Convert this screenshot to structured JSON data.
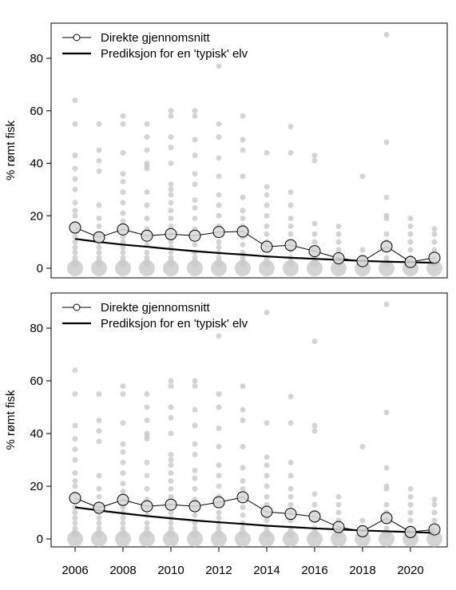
{
  "chart_data": [
    {
      "type": "scatter",
      "ylabel": "% rømt fisk",
      "xlabel": "",
      "xlim": [
        2006,
        2021
      ],
      "ylim": [
        0,
        90
      ],
      "yticks": [
        0,
        20,
        40,
        60,
        80
      ],
      "xticks_shown": false,
      "grid": false,
      "legend": {
        "position": "top-left",
        "entries": [
          "Direkte gjennomsnitt",
          "Prediksjon for en 'typisk' elv"
        ]
      },
      "series": [
        {
          "name": "Direkte gjennomsnitt",
          "style": "line+open-circles",
          "x": [
            2006,
            2007,
            2008,
            2009,
            2010,
            2011,
            2012,
            2013,
            2014,
            2015,
            2016,
            2017,
            2018,
            2019,
            2020,
            2021
          ],
          "values": [
            15.5,
            11.8,
            14.8,
            12.4,
            13.0,
            12.4,
            13.8,
            14.0,
            8.2,
            8.8,
            6.5,
            3.8,
            2.7,
            8.3,
            2.4,
            4.0
          ]
        },
        {
          "name": "Prediksjon for en 'typisk' elv",
          "style": "thick-line",
          "x": [
            2006,
            2007,
            2008,
            2009,
            2010,
            2011,
            2012,
            2013,
            2014,
            2015,
            2016,
            2017,
            2018,
            2019,
            2020,
            2021
          ],
          "values": [
            11.2,
            10.0,
            9.0,
            8.2,
            7.3,
            6.5,
            5.8,
            5.2,
            4.5,
            4.0,
            3.6,
            3.2,
            2.8,
            2.5,
            2.3,
            2.1
          ]
        }
      ],
      "river_observations": [
        {
          "x": 2006,
          "y": [
            0,
            2,
            4,
            6,
            8,
            10,
            12,
            14,
            17,
            20,
            22,
            25,
            30,
            34,
            38,
            43,
            55,
            64
          ]
        },
        {
          "x": 2007,
          "y": [
            0,
            2,
            4,
            6,
            8,
            10,
            13,
            16,
            19,
            24,
            37,
            41,
            45,
            55
          ]
        },
        {
          "x": 2008,
          "y": [
            0,
            2,
            4,
            6,
            8,
            10,
            12,
            15,
            18,
            21,
            25,
            29,
            33,
            36,
            44,
            55,
            58
          ]
        },
        {
          "x": 2009,
          "y": [
            0,
            2,
            4,
            6,
            9,
            12,
            15,
            19,
            24,
            29,
            38,
            39,
            40,
            45,
            50,
            55
          ]
        },
        {
          "x": 2010,
          "y": [
            0,
            2,
            4,
            6,
            8,
            10,
            13,
            16,
            19,
            22,
            25,
            28,
            30,
            32,
            40,
            46,
            50,
            58,
            60
          ]
        },
        {
          "x": 2011,
          "y": [
            0,
            2,
            4,
            6,
            9,
            12,
            15,
            19,
            23,
            26,
            32,
            36,
            43,
            49,
            58,
            60
          ]
        },
        {
          "x": 2012,
          "y": [
            0,
            2,
            4,
            6,
            8,
            10,
            13,
            16,
            20,
            24,
            28,
            35,
            42,
            50,
            55,
            77
          ]
        },
        {
          "x": 2013,
          "y": [
            0,
            2,
            4,
            6,
            9,
            12,
            16,
            19,
            22,
            27,
            35,
            45,
            49,
            58
          ]
        },
        {
          "x": 2014,
          "y": [
            0,
            2,
            4,
            7,
            10,
            13,
            16,
            20,
            24,
            28,
            31,
            44
          ]
        },
        {
          "x": 2015,
          "y": [
            0,
            2,
            4,
            7,
            10,
            13,
            16,
            19,
            24,
            29,
            44,
            54
          ]
        },
        {
          "x": 2016,
          "y": [
            0,
            2,
            4,
            7,
            10,
            13,
            17,
            41,
            43
          ]
        },
        {
          "x": 2017,
          "y": [
            0,
            2,
            4,
            7,
            10,
            13,
            16
          ]
        },
        {
          "x": 2018,
          "y": [
            0,
            2,
            4,
            7,
            35
          ]
        },
        {
          "x": 2019,
          "y": [
            0,
            2,
            4,
            7,
            10,
            13,
            19,
            20,
            27,
            48,
            89
          ]
        },
        {
          "x": 2020,
          "y": [
            0,
            2,
            4,
            7,
            10,
            13,
            16,
            19
          ]
        },
        {
          "x": 2021,
          "y": [
            0,
            2,
            4,
            7,
            10,
            13,
            15
          ]
        }
      ]
    },
    {
      "type": "scatter",
      "ylabel": "% rømt fisk",
      "xlabel": "",
      "xlim": [
        2006,
        2021
      ],
      "ylim": [
        0,
        90
      ],
      "yticks": [
        0,
        20,
        40,
        60,
        80
      ],
      "xticks": [
        2006,
        2008,
        2010,
        2012,
        2014,
        2016,
        2018,
        2020
      ],
      "xticks_shown": true,
      "grid": false,
      "legend": {
        "position": "top-left",
        "entries": [
          "Direkte gjennomsnitt",
          "Prediksjon for en 'typisk' elv"
        ]
      },
      "series": [
        {
          "name": "Direkte gjennomsnitt",
          "style": "line+open-circles",
          "x": [
            2006,
            2007,
            2008,
            2009,
            2010,
            2011,
            2012,
            2013,
            2014,
            2015,
            2016,
            2017,
            2018,
            2019,
            2020,
            2021
          ],
          "values": [
            15.5,
            11.8,
            14.8,
            12.4,
            13.0,
            12.4,
            13.9,
            15.8,
            10.3,
            9.5,
            8.5,
            4.5,
            2.9,
            7.9,
            2.6,
            3.6
          ]
        },
        {
          "name": "Prediksjon for en 'typisk' elv",
          "style": "thick-line",
          "x": [
            2006,
            2007,
            2008,
            2009,
            2010,
            2011,
            2012,
            2013,
            2014,
            2015,
            2016,
            2017,
            2018,
            2019,
            2020,
            2021
          ],
          "values": [
            12.0,
            10.8,
            9.7,
            8.7,
            7.8,
            7.0,
            6.3,
            5.7,
            5.0,
            4.5,
            4.0,
            3.6,
            3.2,
            2.9,
            2.6,
            2.3
          ]
        }
      ],
      "river_observations": [
        {
          "x": 2006,
          "y": [
            0,
            2,
            4,
            6,
            8,
            10,
            12,
            14,
            17,
            20,
            22,
            25,
            30,
            34,
            38,
            43,
            55,
            64
          ]
        },
        {
          "x": 2007,
          "y": [
            0,
            2,
            4,
            6,
            8,
            10,
            13,
            16,
            19,
            24,
            37,
            41,
            45,
            55
          ]
        },
        {
          "x": 2008,
          "y": [
            0,
            2,
            4,
            6,
            8,
            10,
            12,
            15,
            18,
            21,
            25,
            29,
            33,
            36,
            44,
            55,
            58
          ]
        },
        {
          "x": 2009,
          "y": [
            0,
            2,
            4,
            6,
            9,
            12,
            15,
            19,
            24,
            29,
            38,
            39,
            40,
            45,
            50,
            55
          ]
        },
        {
          "x": 2010,
          "y": [
            0,
            2,
            4,
            6,
            8,
            10,
            13,
            16,
            19,
            22,
            25,
            28,
            30,
            32,
            40,
            46,
            50,
            58,
            60
          ]
        },
        {
          "x": 2011,
          "y": [
            0,
            2,
            4,
            6,
            9,
            12,
            15,
            19,
            23,
            26,
            32,
            36,
            43,
            49,
            58,
            60
          ]
        },
        {
          "x": 2012,
          "y": [
            0,
            2,
            4,
            6,
            8,
            10,
            13,
            16,
            20,
            24,
            28,
            35,
            42,
            50,
            55,
            77
          ]
        },
        {
          "x": 2013,
          "y": [
            0,
            2,
            4,
            6,
            9,
            12,
            16,
            19,
            22,
            27,
            35,
            45,
            49,
            58
          ]
        },
        {
          "x": 2014,
          "y": [
            0,
            2,
            4,
            7,
            10,
            13,
            16,
            20,
            24,
            28,
            31,
            44,
            86
          ]
        },
        {
          "x": 2015,
          "y": [
            0,
            2,
            4,
            7,
            10,
            13,
            16,
            19,
            24,
            29,
            44,
            54
          ]
        },
        {
          "x": 2016,
          "y": [
            0,
            2,
            4,
            7,
            10,
            13,
            17,
            41,
            43,
            75
          ]
        },
        {
          "x": 2017,
          "y": [
            0,
            2,
            4,
            7,
            10,
            13,
            16
          ]
        },
        {
          "x": 2018,
          "y": [
            0,
            2,
            4,
            7,
            35
          ]
        },
        {
          "x": 2019,
          "y": [
            0,
            2,
            4,
            7,
            10,
            13,
            19,
            20,
            27,
            48,
            89
          ]
        },
        {
          "x": 2020,
          "y": [
            0,
            2,
            4,
            7,
            10,
            13,
            16,
            19
          ]
        },
        {
          "x": 2021,
          "y": [
            0,
            2,
            4,
            7,
            10,
            13,
            15
          ]
        }
      ]
    }
  ]
}
